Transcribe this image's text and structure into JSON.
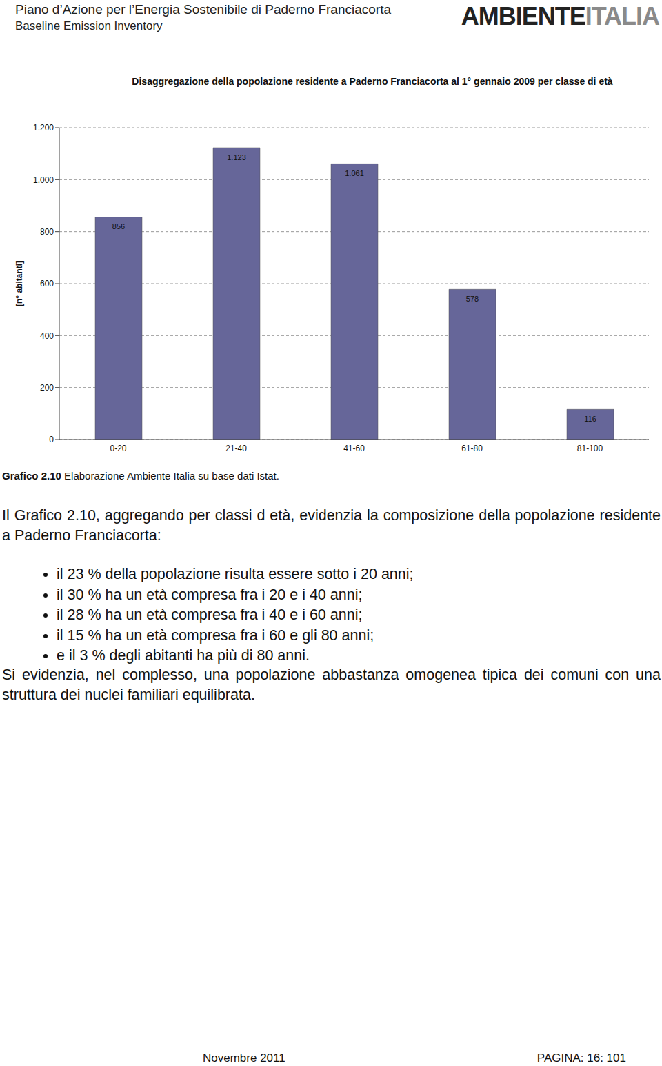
{
  "header": {
    "title": "Piano d’Azione per l’Energia Sostenibile di Paderno Franciacorta",
    "subtitle": "Baseline Emission Inventory",
    "logo": [
      "AMBIENTE",
      "ITALIA"
    ]
  },
  "chart_data": {
    "type": "bar",
    "title": "Disaggregazione della popolazione residente a Paderno Franciacorta al 1° gennaio 2009 per classe di età",
    "ylabel": "[n° abitanti]",
    "categories": [
      "0-20",
      "21-40",
      "41-60",
      "61-80",
      "81-100"
    ],
    "values": [
      856,
      1123,
      1061,
      578,
      116
    ],
    "value_labels": [
      "856",
      "1.123",
      "1.061",
      "578",
      "116"
    ],
    "color": "#666699",
    "ylim": [
      0,
      1200
    ],
    "yticks": [
      0,
      200,
      400,
      600,
      800,
      {
        "value": 1000,
        "label": "1.000"
      },
      {
        "value": 1200,
        "label": "1.200"
      }
    ],
    "grid": true,
    "data_labels": true
  },
  "caption": {
    "label": "Grafico 2.10",
    "text": "Elaborazione Ambiente Italia su base dati Istat."
  },
  "body": {
    "intro": "Il Grafico 2.10, aggregando per classi d età, evidenzia la composizione della popolazione residente a Paderno Franciacorta:",
    "bullets": [
      "il 23 % della popolazione risulta essere sotto i 20 anni;",
      "il 30 % ha un età compresa fra i 20 e i 40 anni;",
      "il 28 % ha un età compresa fra i 40 e i 60 anni;",
      "il 15 % ha un età compresa fra i 60 e gli 80 anni;",
      "e il 3 % degli abitanti ha più di 80 anni."
    ],
    "conclusion": "Si evidenzia, nel complesso, una popolazione abbastanza omogenea tipica dei comuni con una struttura dei nuclei familiari equilibrata."
  },
  "footer": {
    "date": "Novembre 2011",
    "page": "PAGINA: 16: 101"
  }
}
